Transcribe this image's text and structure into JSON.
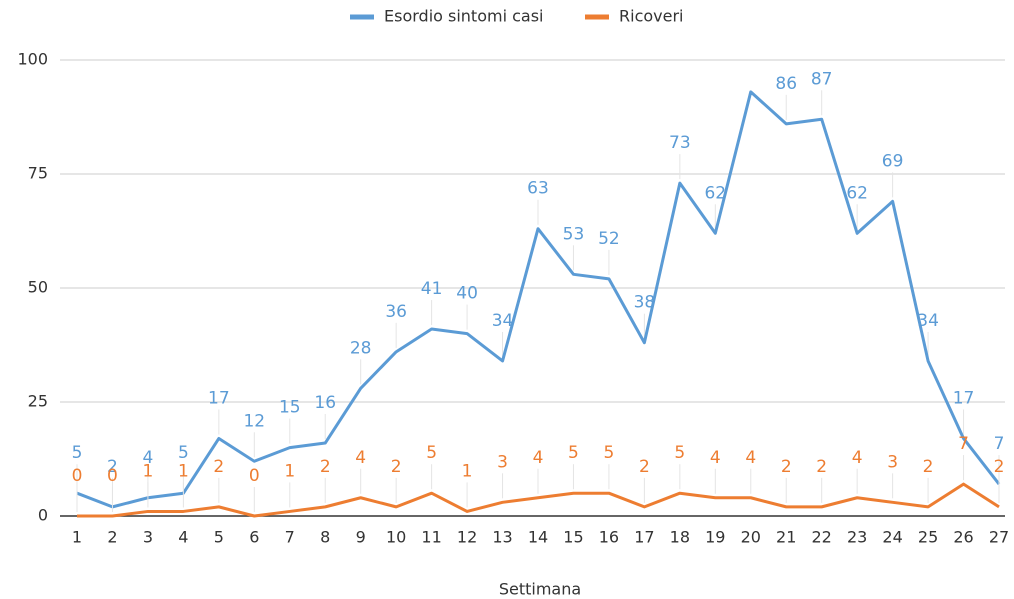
{
  "chart_data": {
    "type": "line",
    "x_label": "Settimana",
    "categories": [
      "1",
      "2",
      "3",
      "4",
      "5",
      "6",
      "7",
      "8",
      "9",
      "10",
      "11",
      "12",
      "13",
      "14",
      "15",
      "16",
      "17",
      "18",
      "19",
      "20",
      "21",
      "22",
      "23",
      "24",
      "25",
      "26",
      "27"
    ],
    "series": [
      {
        "name": "Esordio sintomi casi",
        "color": "#5b9bd5",
        "values": [
          5,
          2,
          4,
          5,
          17,
          12,
          15,
          16,
          28,
          36,
          41,
          40,
          34,
          63,
          53,
          52,
          38,
          73,
          62,
          93,
          86,
          87,
          62,
          69,
          34,
          17,
          7
        ],
        "value_labels": [
          "5",
          "2",
          "4",
          "5",
          "17",
          "12",
          "15",
          "16",
          "28",
          "36",
          "41",
          "40",
          "34",
          "63",
          "53",
          "52",
          "38",
          "73",
          "62",
          null,
          "86",
          "87",
          "62",
          "69",
          "34",
          "17",
          "7"
        ]
      },
      {
        "name": "Ricoveri",
        "color": "#ed7d31",
        "values": [
          0,
          0,
          1,
          1,
          2,
          0,
          1,
          2,
          4,
          2,
          5,
          1,
          3,
          4,
          5,
          5,
          2,
          5,
          4,
          4,
          2,
          2,
          4,
          3,
          2,
          7,
          2
        ],
        "value_labels": [
          "0",
          "0",
          "1",
          "1",
          "2",
          "0",
          "1",
          "2",
          "4",
          "2",
          "5",
          "1",
          "3",
          "4",
          "5",
          "5",
          "2",
          "5",
          "4",
          "4",
          "2",
          "2",
          "4",
          "3",
          "2",
          "7",
          "2"
        ]
      }
    ],
    "ylim": [
      0,
      100
    ],
    "yticks": [
      0,
      25,
      50,
      75,
      100
    ],
    "grid": true,
    "legend": "top"
  }
}
